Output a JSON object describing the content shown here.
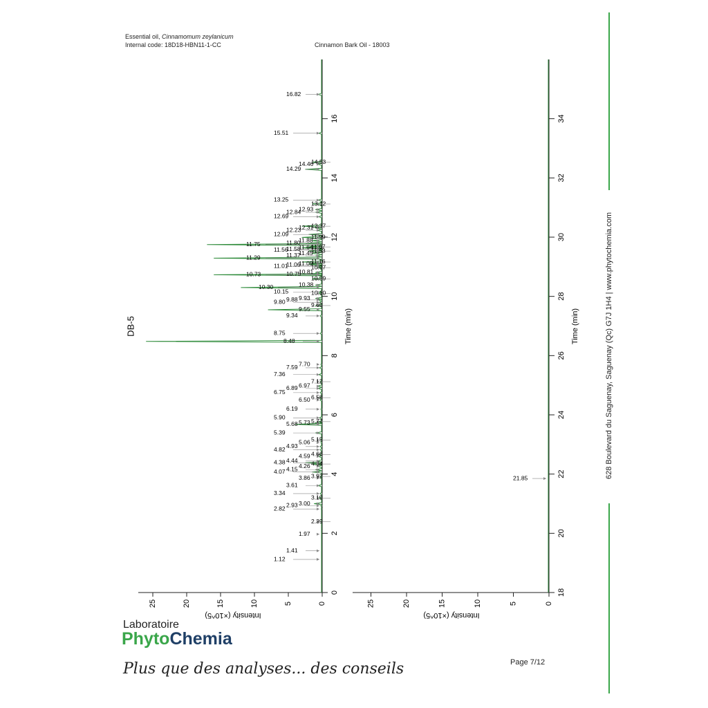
{
  "header": {
    "sample_prefix": "Essential oil, ",
    "sample_species": "Cinnamomum zeylanicum",
    "internal_code": "Internal code: 18D18-HBN11-1-CC",
    "product": "Cinnamon Bark Oil - 18003"
  },
  "footer": {
    "address": "628 Boulevard du Saguenay, Saguenay (Qc)  G7J 1H4  |  www.phytochemia.com",
    "logo_top": "Laboratoire",
    "logo_phyto": "Phyto",
    "logo_chemia": "Chemia",
    "slogan": "Plus que des analyses... des conseils",
    "page": "Page 7/12"
  },
  "colors": {
    "trace": "#2e8b3a",
    "accent": "#3aa64a",
    "axis": "#222222",
    "arrow": "#888888"
  },
  "chart_data": [
    {
      "type": "line",
      "orientation": "rotated",
      "column_label": "DB-5",
      "xlabel": "Time (min)",
      "ylabel": "Intensity (×10^5)",
      "xlim": [
        0,
        18
      ],
      "ylim": [
        0,
        27
      ],
      "x_ticks": [
        0,
        2,
        4,
        6,
        8,
        10,
        12,
        14,
        16
      ],
      "y_ticks": [
        0,
        5,
        10,
        15,
        20,
        25
      ],
      "grid": false,
      "peaks": [
        {
          "rt": "1.12",
          "x": 1.12,
          "y": 0.1
        },
        {
          "rt": "1.41",
          "x": 1.41,
          "y": 0.1
        },
        {
          "rt": "1.97",
          "x": 1.97,
          "y": 0.1
        },
        {
          "rt": "2.39",
          "x": 2.39,
          "y": 0.1
        },
        {
          "rt": "2.82",
          "x": 2.82,
          "y": 0.15
        },
        {
          "rt": "2.93",
          "x": 2.93,
          "y": 0.2
        },
        {
          "rt": "3.00",
          "x": 3.0,
          "y": 1.2
        },
        {
          "rt": "3.19",
          "x": 3.19,
          "y": 0.5
        },
        {
          "rt": "3.34",
          "x": 3.34,
          "y": 0.3
        },
        {
          "rt": "3.61",
          "x": 3.61,
          "y": 0.6
        },
        {
          "rt": "3.86",
          "x": 3.86,
          "y": 0.2
        },
        {
          "rt": "3.92",
          "x": 3.92,
          "y": 0.3
        },
        {
          "rt": "4.07",
          "x": 4.07,
          "y": 1.5
        },
        {
          "rt": "4.15",
          "x": 4.15,
          "y": 1.0
        },
        {
          "rt": "4.26",
          "x": 4.26,
          "y": 0.6
        },
        {
          "rt": "4.34",
          "x": 4.34,
          "y": 1.4
        },
        {
          "rt": "4.38",
          "x": 4.38,
          "y": 2.5
        },
        {
          "rt": "4.44",
          "x": 4.44,
          "y": 0.8
        },
        {
          "rt": "4.59",
          "x": 4.59,
          "y": 0.5
        },
        {
          "rt": "4.66",
          "x": 4.66,
          "y": 0.4
        },
        {
          "rt": "4.82",
          "x": 4.82,
          "y": 0.3
        },
        {
          "rt": "4.93",
          "x": 4.93,
          "y": 0.3
        },
        {
          "rt": "5.06",
          "x": 5.06,
          "y": 0.2
        },
        {
          "rt": "5.15",
          "x": 5.15,
          "y": 0.2
        },
        {
          "rt": "5.39",
          "x": 5.39,
          "y": 1.0
        },
        {
          "rt": "5.68",
          "x": 5.68,
          "y": 4.0
        },
        {
          "rt": "5.73",
          "x": 5.73,
          "y": 1.0
        },
        {
          "rt": "5.77",
          "x": 5.77,
          "y": 0.5
        },
        {
          "rt": "5.90",
          "x": 5.9,
          "y": 0.4
        },
        {
          "rt": "6.19",
          "x": 6.19,
          "y": 0.2
        },
        {
          "rt": "6.50",
          "x": 6.5,
          "y": 0.3
        },
        {
          "rt": "6.58",
          "x": 6.58,
          "y": 0.4
        },
        {
          "rt": "6.75",
          "x": 6.75,
          "y": 0.3
        },
        {
          "rt": "6.89",
          "x": 6.89,
          "y": 0.6
        },
        {
          "rt": "6.97",
          "x": 6.97,
          "y": 0.8
        },
        {
          "rt": "7.12",
          "x": 7.12,
          "y": 0.3
        },
        {
          "rt": "7.36",
          "x": 7.36,
          "y": 0.5
        },
        {
          "rt": "7.59",
          "x": 7.59,
          "y": 0.4
        },
        {
          "rt": "7.70",
          "x": 7.7,
          "y": 0.2
        },
        {
          "rt": "8.48",
          "x": 8.48,
          "y": 26.0
        },
        {
          "rt": "8.75",
          "x": 8.75,
          "y": 0.3
        },
        {
          "rt": "9.34",
          "x": 9.34,
          "y": 0.3
        },
        {
          "rt": "9.55",
          "x": 9.55,
          "y": 8.0
        },
        {
          "rt": "9.69",
          "x": 9.69,
          "y": 1.0
        },
        {
          "rt": "9.80",
          "x": 9.8,
          "y": 0.4
        },
        {
          "rt": "9.88",
          "x": 9.88,
          "y": 0.6
        },
        {
          "rt": "9.93",
          "x": 9.93,
          "y": 1.0
        },
        {
          "rt": "10.10",
          "x": 10.1,
          "y": 0.5
        },
        {
          "rt": "10.15",
          "x": 10.15,
          "y": 0.4
        },
        {
          "rt": "10.30",
          "x": 10.3,
          "y": 12.0
        },
        {
          "rt": "10.38",
          "x": 10.38,
          "y": 1.0
        },
        {
          "rt": "10.59",
          "x": 10.59,
          "y": 1.5
        },
        {
          "rt": "10.73",
          "x": 10.73,
          "y": 16.0
        },
        {
          "rt": "10.75",
          "x": 10.75,
          "y": 3.0
        },
        {
          "rt": "10.81",
          "x": 10.81,
          "y": 1.0
        },
        {
          "rt": "10.97",
          "x": 10.97,
          "y": 0.6
        },
        {
          "rt": "11.01",
          "x": 11.01,
          "y": 1.0
        },
        {
          "rt": "11.06",
          "x": 11.06,
          "y": 1.5
        },
        {
          "rt": "11.09",
          "x": 11.09,
          "y": 2.0
        },
        {
          "rt": "11.16",
          "x": 11.16,
          "y": 3.0
        },
        {
          "rt": "11.29",
          "x": 11.29,
          "y": 16.0
        },
        {
          "rt": "11.37",
          "x": 11.37,
          "y": 1.0
        },
        {
          "rt": "11.45",
          "x": 11.45,
          "y": 1.5
        },
        {
          "rt": "11.53",
          "x": 11.53,
          "y": 2.0
        },
        {
          "rt": "11.56",
          "x": 11.56,
          "y": 0.8
        },
        {
          "rt": "11.58",
          "x": 11.58,
          "y": 0.8
        },
        {
          "rt": "11.64",
          "x": 11.64,
          "y": 3.0
        },
        {
          "rt": "11.67",
          "x": 11.67,
          "y": 2.0
        },
        {
          "rt": "11.75",
          "x": 11.75,
          "y": 17.0
        },
        {
          "rt": "11.80",
          "x": 11.8,
          "y": 2.0
        },
        {
          "rt": "11.88",
          "x": 11.88,
          "y": 1.5
        },
        {
          "rt": "11.99",
          "x": 11.99,
          "y": 3.0
        },
        {
          "rt": "12.09",
          "x": 12.09,
          "y": 2.0
        },
        {
          "rt": "12.23",
          "x": 12.23,
          "y": 0.8
        },
        {
          "rt": "12.31",
          "x": 12.31,
          "y": 1.0
        },
        {
          "rt": "12.37",
          "x": 12.37,
          "y": 3.0
        },
        {
          "rt": "12.69",
          "x": 12.69,
          "y": 0.5
        },
        {
          "rt": "12.84",
          "x": 12.84,
          "y": 1.0
        },
        {
          "rt": "12.93",
          "x": 12.93,
          "y": 1.0
        },
        {
          "rt": "13.12",
          "x": 13.12,
          "y": 1.5
        },
        {
          "rt": "13.25",
          "x": 13.25,
          "y": 0.6
        },
        {
          "rt": "14.29",
          "x": 14.29,
          "y": 2.5
        },
        {
          "rt": "14.46",
          "x": 14.46,
          "y": 0.6
        },
        {
          "rt": "14.53",
          "x": 14.53,
          "y": 1.5
        },
        {
          "rt": "15.51",
          "x": 15.51,
          "y": 0.5
        },
        {
          "rt": "16.82",
          "x": 16.82,
          "y": 0.6
        }
      ]
    },
    {
      "type": "line",
      "orientation": "rotated",
      "xlabel": "Time (min)",
      "ylabel": "Intensity (×10^5)",
      "xlim": [
        18,
        36
      ],
      "ylim": [
        0,
        27
      ],
      "x_ticks": [
        18,
        20,
        22,
        24,
        26,
        28,
        30,
        32,
        34
      ],
      "y_ticks": [
        0,
        5,
        10,
        15,
        20,
        25
      ],
      "grid": false,
      "peaks": [
        {
          "rt": "21.85",
          "x": 21.85,
          "y": 0.1
        }
      ]
    }
  ]
}
